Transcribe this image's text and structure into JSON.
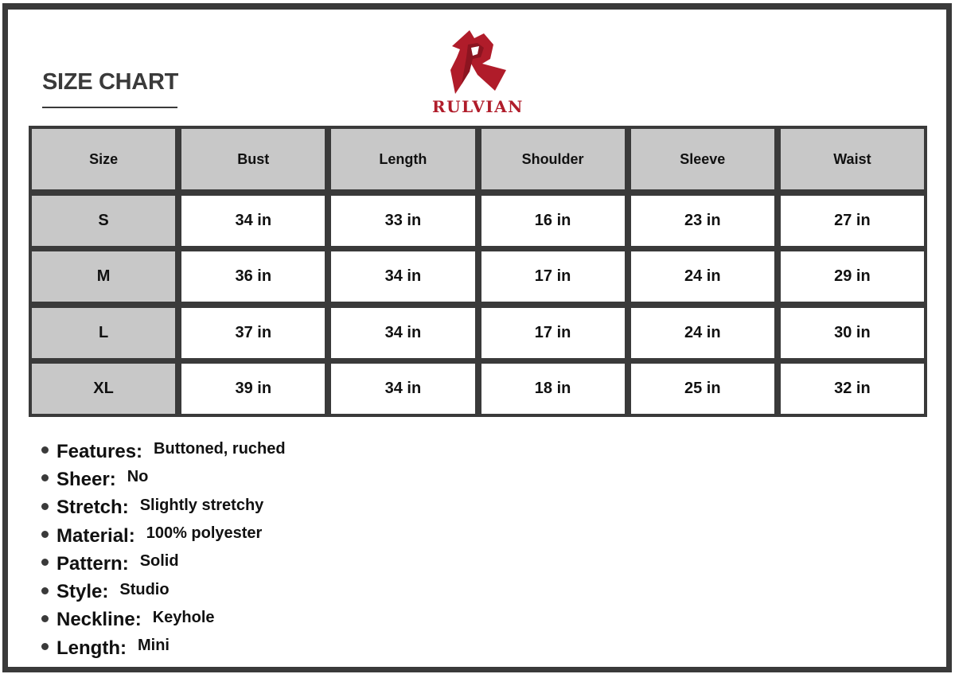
{
  "title": "SIZE CHART",
  "brand": {
    "name": "RULVIAN",
    "color": "#b01c2a",
    "logo_icon": "stylized-r-logo"
  },
  "table": {
    "headers": [
      "Size",
      "Bust",
      "Length",
      "Shoulder",
      "Sleeve",
      "Waist"
    ],
    "rows": [
      [
        "S",
        "34 in",
        "33 in",
        "16 in",
        "23 in",
        "27 in"
      ],
      [
        "M",
        "36 in",
        "34 in",
        "17 in",
        "24 in",
        "29 in"
      ],
      [
        "L",
        "37 in",
        "34 in",
        "17 in",
        "24 in",
        "30 in"
      ],
      [
        "XL",
        "39 in",
        "34 in",
        "18 in",
        "25 in",
        "32 in"
      ]
    ]
  },
  "features": [
    {
      "label": "Features:",
      "value": "Buttoned, ruched"
    },
    {
      "label": "Sheer:",
      "value": "No"
    },
    {
      "label": "Stretch:",
      "value": "Slightly stretchy"
    },
    {
      "label": "Material:",
      "value": "100% polyester"
    },
    {
      "label": "Pattern:",
      "value": "Solid"
    },
    {
      "label": "Style:",
      "value": "Studio"
    },
    {
      "label": "Neckline:",
      "value": "Keyhole"
    },
    {
      "label": "Length:",
      "value": "Mini"
    }
  ]
}
